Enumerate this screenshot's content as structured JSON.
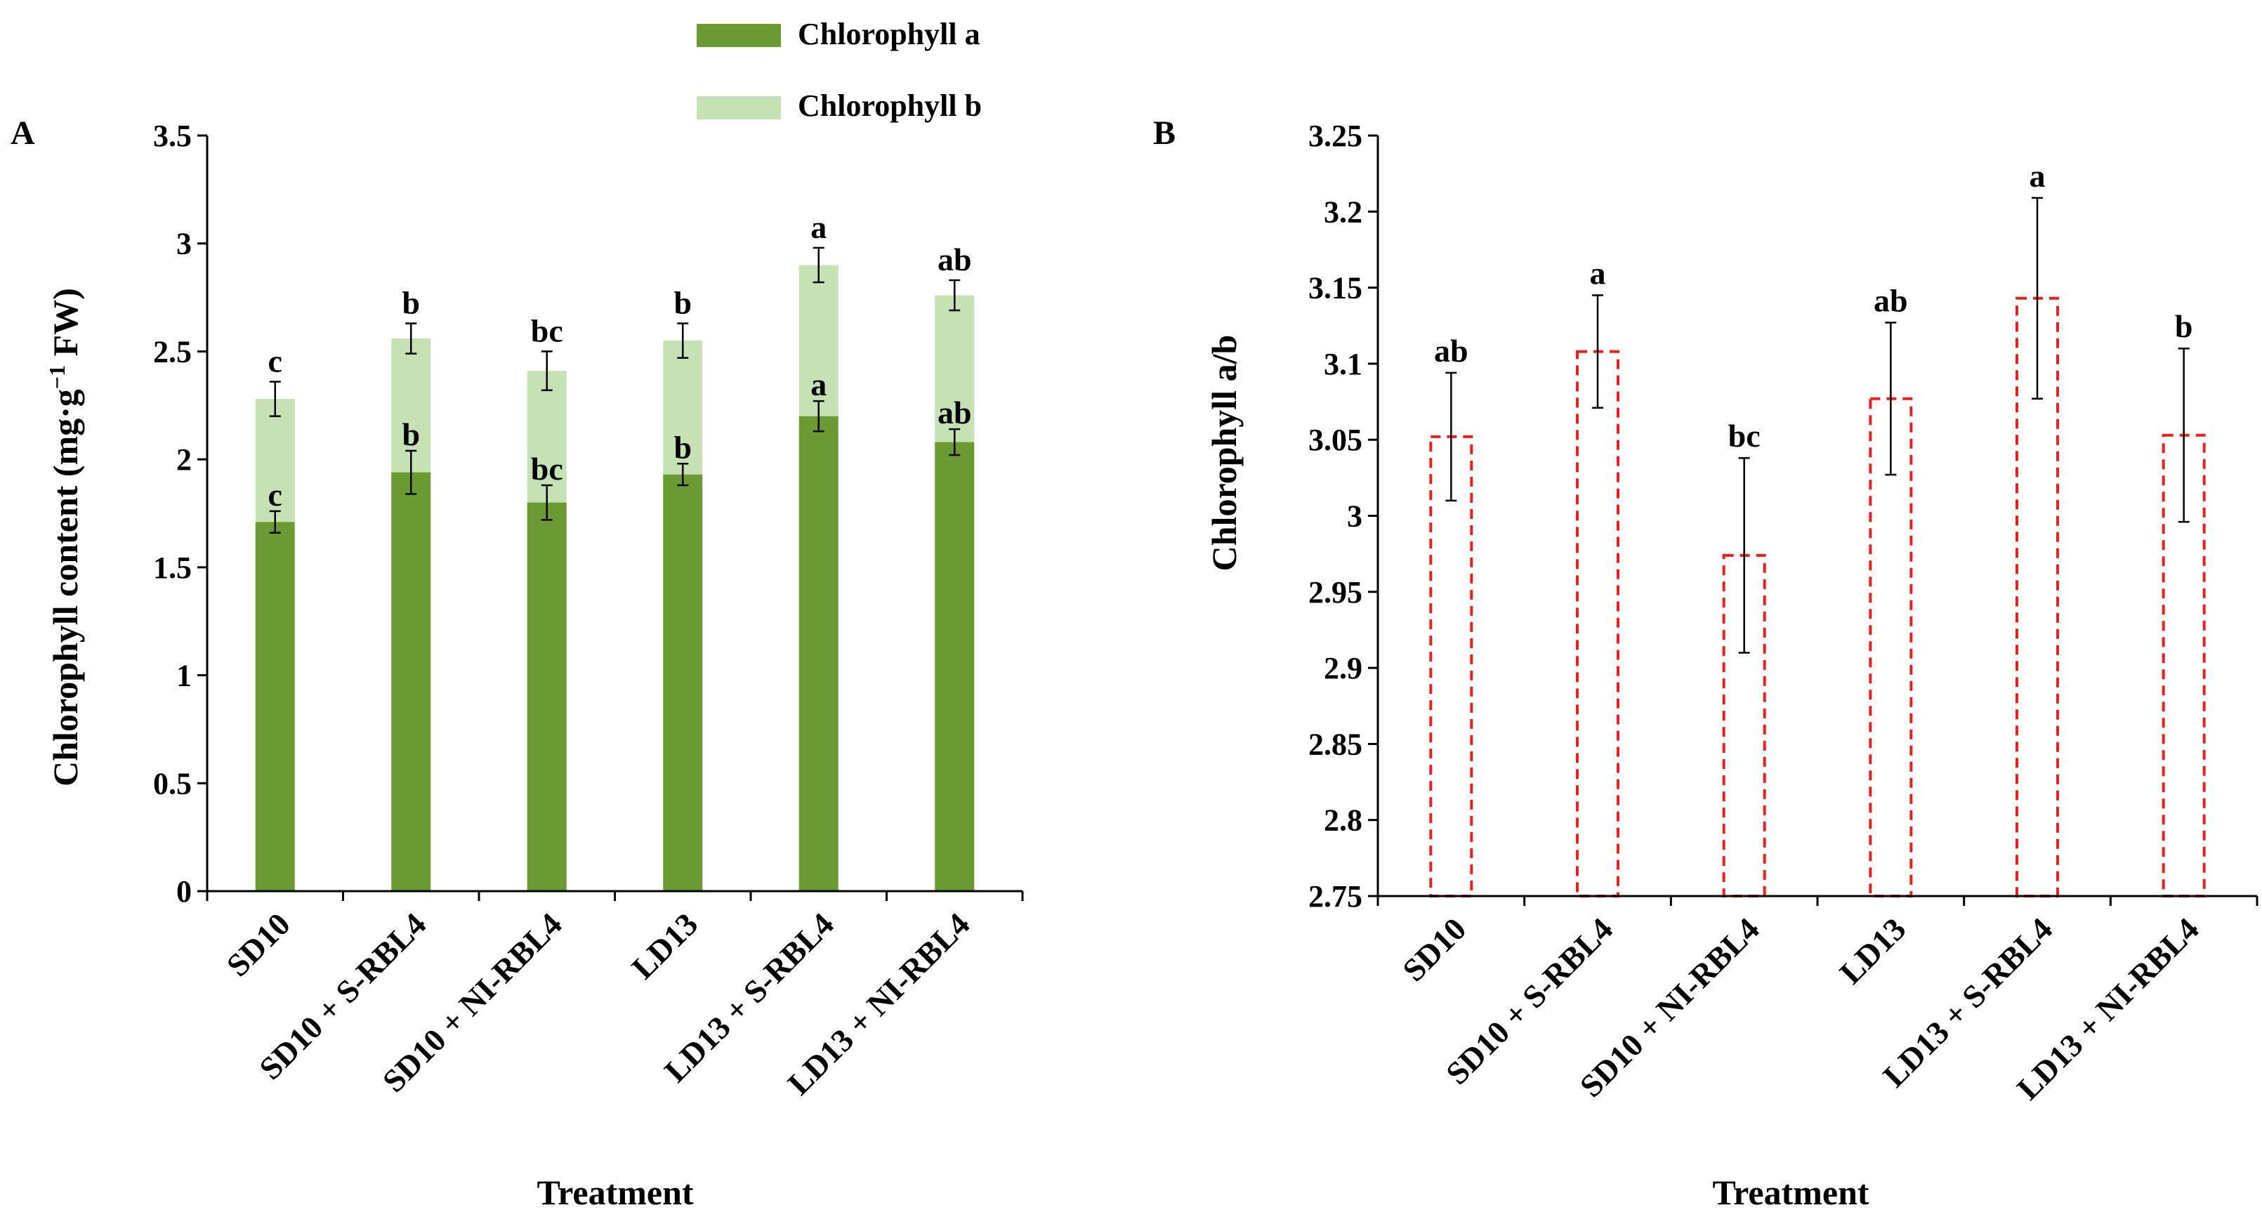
{
  "legend": {
    "chl_a": "Chlorophyll a",
    "chl_b": "Chlorophyll b"
  },
  "colors": {
    "chl_a": "#6b9a33",
    "chl_b": "#c6e2b4",
    "ratio_outline": "#e8201e",
    "axis": "#000000"
  },
  "chart_data": [
    {
      "panel": "A",
      "type": "bar",
      "stacked": true,
      "title": "",
      "xlabel": "Treatment",
      "ylabel": "Chlorophyll content (mg·g",
      "ylabel_sup": "−1",
      "ylabel_suffix": " FW)",
      "categories": [
        "SD10",
        "SD10 + S-RBL4",
        "SD10 + NI-RBL4",
        "LD13",
        "LD13 + S-RBL4",
        "LD13 + NI-RBL4"
      ],
      "ylim": [
        0,
        3.5
      ],
      "yticks": [
        0,
        0.5,
        1,
        1.5,
        2,
        2.5,
        3,
        3.5
      ],
      "ytick_labels": [
        "0",
        "0.5",
        "1",
        "1.5",
        "2",
        "2.5",
        "3",
        "3.5"
      ],
      "series": [
        {
          "name": "Chlorophyll a",
          "values": [
            1.71,
            1.94,
            1.8,
            1.93,
            2.2,
            2.08
          ],
          "errors": [
            0.05,
            0.1,
            0.08,
            0.05,
            0.07,
            0.06
          ],
          "labels": [
            "c",
            "b",
            "bc",
            "b",
            "a",
            "ab"
          ]
        },
        {
          "name": "Chlorophyll b",
          "values": [
            0.57,
            0.62,
            0.61,
            0.62,
            0.7,
            0.68
          ],
          "totals": [
            2.28,
            2.56,
            2.41,
            2.55,
            2.9,
            2.76
          ],
          "errors": [
            0.08,
            0.07,
            0.09,
            0.08,
            0.08,
            0.07
          ],
          "labels": [
            "c",
            "b",
            "bc",
            "b",
            "a",
            "ab"
          ]
        }
      ]
    },
    {
      "panel": "B",
      "type": "bar",
      "title": "",
      "xlabel": "Treatment",
      "ylabel": "Chlorophyll a/b",
      "categories": [
        "SD10",
        "SD10 + S-RBL4",
        "SD10 + NI-RBL4",
        "LD13",
        "LD13 + S-RBL4",
        "LD13 + NI-RBL4"
      ],
      "ylim": [
        2.75,
        3.25
      ],
      "yticks": [
        2.75,
        2.8,
        2.85,
        2.9,
        2.95,
        3,
        3.05,
        3.1,
        3.15,
        3.2,
        3.25
      ],
      "ytick_labels": [
        "2.75",
        "2.8",
        "2.85",
        "2.9",
        "2.95",
        "3",
        "3.05",
        "3.1",
        "3.15",
        "3.2",
        "3.25"
      ],
      "values": [
        3.052,
        3.108,
        2.974,
        3.077,
        3.143,
        3.053
      ],
      "errors": [
        0.042,
        0.037,
        0.064,
        0.05,
        0.066,
        0.057
      ],
      "labels": [
        "ab",
        "a",
        "bc",
        "ab",
        "a",
        "b"
      ]
    }
  ]
}
